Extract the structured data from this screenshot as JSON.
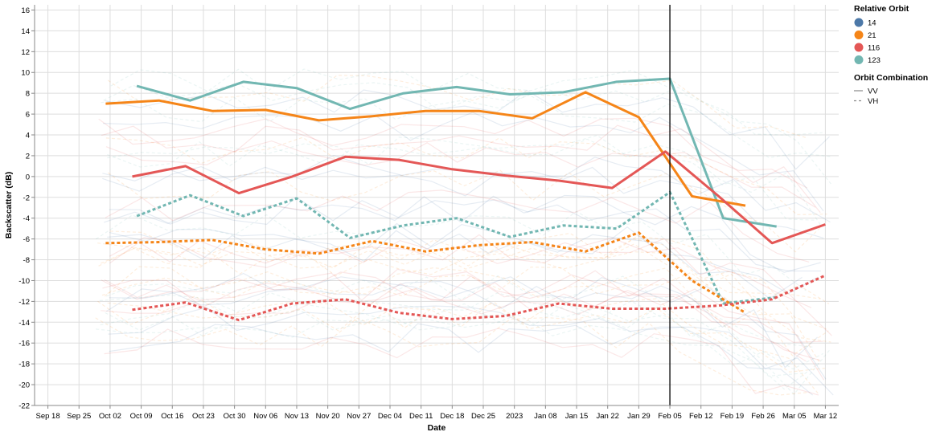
{
  "chart_data": {
    "type": "line",
    "xlabel": "Date",
    "ylabel": "Backscatter (dB)",
    "ylim": [
      -22,
      16.5
    ],
    "y_ticks": [
      -22,
      -20,
      -18,
      -16,
      -14,
      -12,
      -10,
      -8,
      -6,
      -4,
      -2,
      0,
      2,
      4,
      6,
      8,
      10,
      12,
      14,
      16
    ],
    "xlim": [
      "2022-09-15",
      "2023-03-15"
    ],
    "x_ticks": [
      {
        "date": "2022-09-18",
        "label": "Sep 18"
      },
      {
        "date": "2022-09-25",
        "label": "Sep 25"
      },
      {
        "date": "2022-10-02",
        "label": "Oct 02"
      },
      {
        "date": "2022-10-09",
        "label": "Oct 09"
      },
      {
        "date": "2022-10-16",
        "label": "Oct 16"
      },
      {
        "date": "2022-10-23",
        "label": "Oct 23"
      },
      {
        "date": "2022-10-30",
        "label": "Oct 30"
      },
      {
        "date": "2022-11-06",
        "label": "Nov 06"
      },
      {
        "date": "2022-11-13",
        "label": "Nov 13"
      },
      {
        "date": "2022-11-20",
        "label": "Nov 20"
      },
      {
        "date": "2022-11-27",
        "label": "Nov 27"
      },
      {
        "date": "2022-12-04",
        "label": "Dec 04"
      },
      {
        "date": "2022-12-11",
        "label": "Dec 11"
      },
      {
        "date": "2022-12-18",
        "label": "Dec 18"
      },
      {
        "date": "2022-12-25",
        "label": "Dec 25"
      },
      {
        "date": "2023-01-01",
        "label": "2023"
      },
      {
        "date": "2023-01-08",
        "label": "Jan 08"
      },
      {
        "date": "2023-01-15",
        "label": "Jan 15"
      },
      {
        "date": "2023-01-22",
        "label": "Jan 22"
      },
      {
        "date": "2023-01-29",
        "label": "Jan 29"
      },
      {
        "date": "2023-02-05",
        "label": "Feb 05"
      },
      {
        "date": "2023-02-12",
        "label": "Feb 12"
      },
      {
        "date": "2023-02-19",
        "label": "Feb 19"
      },
      {
        "date": "2023-02-26",
        "label": "Feb 26"
      },
      {
        "date": "2023-03-05",
        "label": "Mar 05"
      },
      {
        "date": "2023-03-12",
        "label": "Mar 12"
      }
    ],
    "grid": true,
    "vertical_rule": {
      "date": "2023-02-05",
      "color": "#000000"
    },
    "legends": [
      {
        "title": "Relative Orbit",
        "type": "color",
        "entries": [
          {
            "label": "14",
            "color": "#4c78a8"
          },
          {
            "label": "21",
            "color": "#f58518"
          },
          {
            "label": "116",
            "color": "#e45756"
          },
          {
            "label": "123",
            "color": "#72b7b2"
          }
        ]
      },
      {
        "title": "Orbit Combination",
        "type": "stroke-dash",
        "entries": [
          {
            "label": "VV",
            "dash": "solid"
          },
          {
            "label": "VH",
            "dash": "dashed"
          }
        ]
      }
    ],
    "legend_position": "right",
    "series": [
      {
        "orbit": "123",
        "polarization": "VV",
        "color": "#72b7b2",
        "dash": "solid",
        "points": [
          [
            "2022-10-08",
            8.7
          ],
          [
            "2022-10-20",
            7.3
          ],
          [
            "2022-11-01",
            9.1
          ],
          [
            "2022-11-13",
            8.5
          ],
          [
            "2022-11-25",
            6.5
          ],
          [
            "2022-12-07",
            8.0
          ],
          [
            "2022-12-19",
            8.6
          ],
          [
            "2022-12-31",
            7.9
          ],
          [
            "2023-01-12",
            8.1
          ],
          [
            "2023-01-24",
            9.1
          ],
          [
            "2023-02-05",
            9.4
          ],
          [
            "2023-02-17",
            -4.0
          ],
          [
            "2023-03-01",
            -4.8
          ]
        ]
      },
      {
        "orbit": "21",
        "polarization": "VV",
        "color": "#f58518",
        "dash": "solid",
        "points": [
          [
            "2022-10-01",
            7.0
          ],
          [
            "2022-10-13",
            7.3
          ],
          [
            "2022-10-25",
            6.3
          ],
          [
            "2022-11-06",
            6.4
          ],
          [
            "2022-11-18",
            5.4
          ],
          [
            "2022-11-30",
            5.8
          ],
          [
            "2022-12-12",
            6.3
          ],
          [
            "2022-12-24",
            6.3
          ],
          [
            "2023-01-05",
            5.6
          ],
          [
            "2023-01-17",
            8.1
          ],
          [
            "2023-01-29",
            5.7
          ],
          [
            "2023-02-10",
            -1.9
          ],
          [
            "2023-02-22",
            -2.8
          ]
        ]
      },
      {
        "orbit": "116",
        "polarization": "VV",
        "color": "#e45756",
        "dash": "solid",
        "points": [
          [
            "2022-10-07",
            0.0
          ],
          [
            "2022-10-19",
            1.0
          ],
          [
            "2022-10-31",
            -1.6
          ],
          [
            "2022-11-12",
            0.0
          ],
          [
            "2022-11-24",
            1.9
          ],
          [
            "2022-12-06",
            1.6
          ],
          [
            "2022-12-18",
            0.7
          ],
          [
            "2022-12-30",
            0.1
          ],
          [
            "2023-01-11",
            -0.4
          ],
          [
            "2023-01-23",
            -1.1
          ],
          [
            "2023-02-04",
            2.4
          ],
          [
            "2023-02-16",
            -1.9
          ],
          [
            "2023-02-28",
            -6.4
          ],
          [
            "2023-03-12",
            -4.6
          ]
        ]
      },
      {
        "orbit": "123",
        "polarization": "VH",
        "color": "#72b7b2",
        "dash": "dashed",
        "points": [
          [
            "2022-10-08",
            -3.8
          ],
          [
            "2022-10-20",
            -1.8
          ],
          [
            "2022-11-01",
            -3.8
          ],
          [
            "2022-11-13",
            -2.1
          ],
          [
            "2022-11-25",
            -5.9
          ],
          [
            "2022-12-07",
            -4.7
          ],
          [
            "2022-12-19",
            -4.0
          ],
          [
            "2022-12-31",
            -5.8
          ],
          [
            "2023-01-12",
            -4.7
          ],
          [
            "2023-01-24",
            -5.0
          ],
          [
            "2023-02-05",
            -1.5
          ],
          [
            "2023-02-17",
            -12.2
          ],
          [
            "2023-03-01",
            -11.6
          ]
        ]
      },
      {
        "orbit": "21",
        "polarization": "VH",
        "color": "#f58518",
        "dash": "dashed",
        "points": [
          [
            "2022-10-01",
            -6.4
          ],
          [
            "2022-10-13",
            -6.3
          ],
          [
            "2022-10-25",
            -6.1
          ],
          [
            "2022-11-06",
            -7.0
          ],
          [
            "2022-11-18",
            -7.4
          ],
          [
            "2022-11-30",
            -6.2
          ],
          [
            "2022-12-12",
            -7.2
          ],
          [
            "2022-12-24",
            -6.6
          ],
          [
            "2023-01-05",
            -6.3
          ],
          [
            "2023-01-17",
            -7.2
          ],
          [
            "2023-01-29",
            -5.4
          ],
          [
            "2023-02-10",
            -10.0
          ],
          [
            "2023-02-22",
            -13.1
          ]
        ]
      },
      {
        "orbit": "116",
        "polarization": "VH",
        "color": "#e45756",
        "dash": "dashed",
        "points": [
          [
            "2022-10-07",
            -12.8
          ],
          [
            "2022-10-19",
            -12.1
          ],
          [
            "2022-10-31",
            -13.8
          ],
          [
            "2022-11-12",
            -12.2
          ],
          [
            "2022-11-24",
            -11.8
          ],
          [
            "2022-12-06",
            -13.1
          ],
          [
            "2022-12-18",
            -13.7
          ],
          [
            "2022-12-30",
            -13.4
          ],
          [
            "2023-01-11",
            -12.2
          ],
          [
            "2023-01-23",
            -12.7
          ],
          [
            "2023-02-04",
            -12.7
          ],
          [
            "2023-02-16",
            -12.4
          ],
          [
            "2023-02-28",
            -11.8
          ],
          [
            "2023-03-12",
            -9.5
          ]
        ]
      }
    ]
  }
}
